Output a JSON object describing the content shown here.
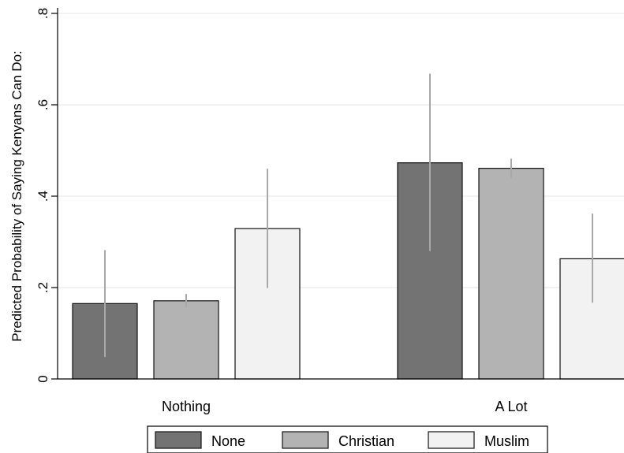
{
  "chart_data": {
    "type": "bar",
    "title": "",
    "xlabel": "",
    "ylabel": "Predicted Probability of Saying Kenyans Can Do:",
    "ylim": [
      0,
      0.8
    ],
    "yticks": [
      0,
      0.2,
      0.4,
      0.6,
      0.8
    ],
    "ytick_labels": [
      "0",
      ".2",
      ".4",
      ".6",
      ".8"
    ],
    "grid": true,
    "legend_position": "bottom",
    "categories": [
      "Nothing",
      "A Lot"
    ],
    "series": [
      {
        "name": "None",
        "color": "#737373",
        "values": [
          0.165,
          0.473
        ],
        "ci_low": [
          0.048,
          0.28
        ],
        "ci_high": [
          0.282,
          0.668
        ]
      },
      {
        "name": "Christian",
        "color": "#b3b3b3",
        "values": [
          0.171,
          0.461
        ],
        "ci_low": [
          0.157,
          0.44
        ],
        "ci_high": [
          0.186,
          0.482
        ]
      },
      {
        "name": "Muslim",
        "color": "#f2f2f2",
        "values": [
          0.329,
          0.263
        ],
        "ci_low": [
          0.199,
          0.167
        ],
        "ci_high": [
          0.46,
          0.362
        ]
      }
    ],
    "error_bar_color": "#a8a8a8"
  }
}
